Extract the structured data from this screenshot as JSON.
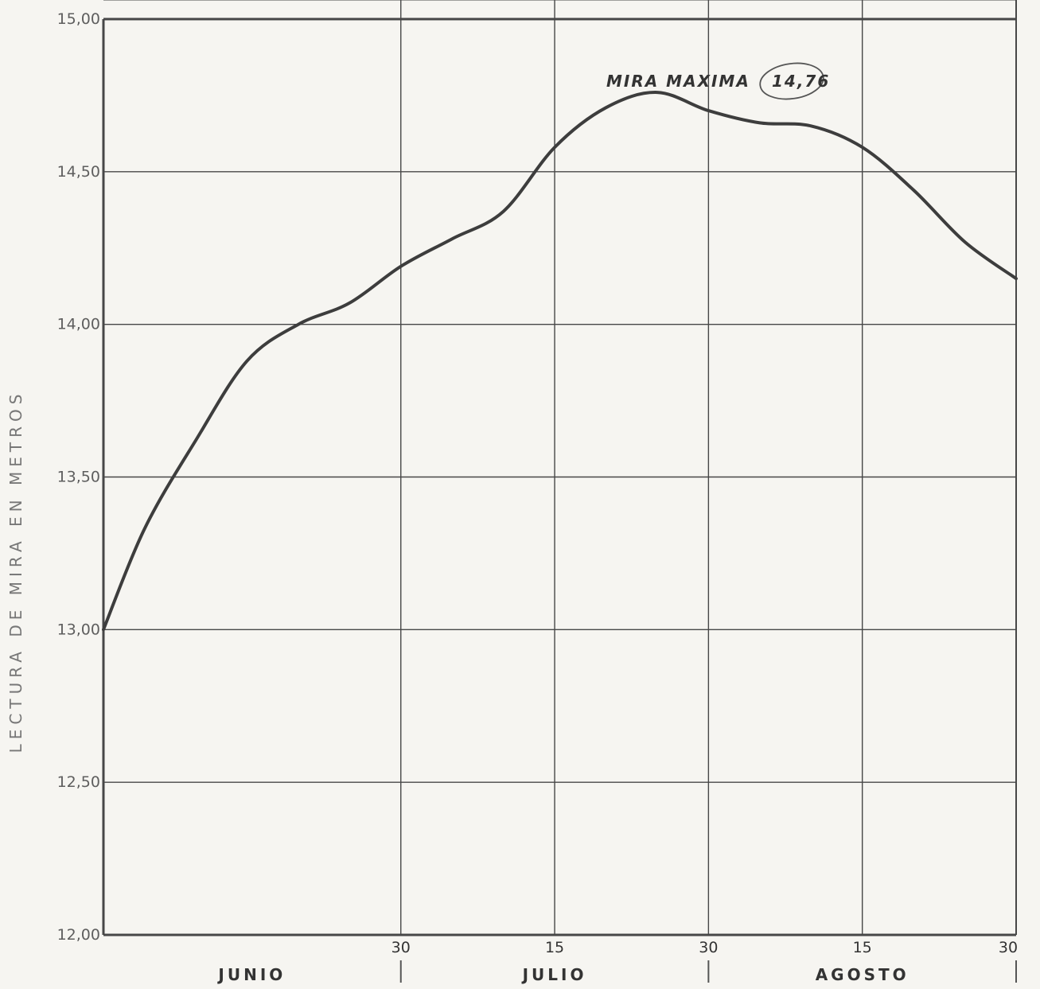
{
  "chart_data": {
    "type": "line",
    "title": "",
    "xlabel": "",
    "ylabel": "LECTURA DE MIRA EN METROS",
    "ylim": [
      12.0,
      15.0
    ],
    "y_ticks": [
      "12,00",
      "12,50",
      "13,00",
      "13,50",
      "14,00",
      "14,50",
      "15,00"
    ],
    "y_tick_values": [
      12.0,
      12.5,
      13.0,
      13.5,
      14.0,
      14.5,
      15.0
    ],
    "xlim": [
      "1 Junio",
      "30 Agosto"
    ],
    "x_ticks": [
      "30",
      "15",
      "30",
      "15",
      "30"
    ],
    "months": [
      "JUNIO",
      "JULIO",
      "AGOSTO"
    ],
    "grid": true,
    "x": [
      "1 Junio",
      "5 Junio",
      "10 Junio",
      "15 Junio",
      "20 Junio",
      "25 Junio",
      "30 Junio",
      "5 Julio",
      "10 Julio",
      "15 Julio",
      "20 Julio",
      "25 Julio",
      "30 Julio",
      "5 Agosto",
      "10 Agosto",
      "15 Agosto",
      "20 Agosto",
      "25 Agosto",
      "30 Agosto"
    ],
    "series": [
      {
        "values": [
          13.0,
          13.33,
          13.62,
          13.88,
          14.0,
          14.07,
          14.19,
          14.28,
          14.37,
          14.58,
          14.71,
          14.76,
          14.7,
          14.66,
          14.65,
          14.58,
          14.44,
          14.27,
          14.15
        ]
      }
    ],
    "annotations": [
      {
        "label": "MIRA MAXIMA",
        "value": "14,76",
        "x": "25 Julio",
        "y": 14.76
      }
    ],
    "colors": {
      "line": "#3d3d3d",
      "grid": "#474747",
      "background": "#f6f5f1"
    }
  }
}
